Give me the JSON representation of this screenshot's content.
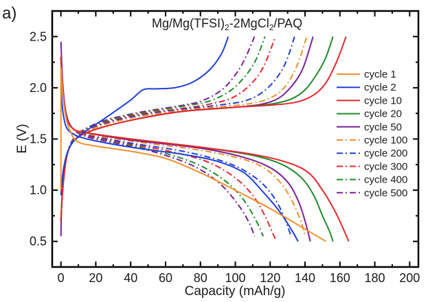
{
  "chart_data": {
    "type": "line",
    "panel_label": "a)",
    "title_parts": [
      {
        "text": "Mg/Mg(TFSI)",
        "sub": false
      },
      {
        "text": "2",
        "sub": true
      },
      {
        "text": "-2MgCl",
        "sub": false
      },
      {
        "text": "2",
        "sub": true
      },
      {
        "text": "/PAQ",
        "sub": false
      }
    ],
    "title": "Mg/Mg(TFSI)2-2MgCl2/PAQ",
    "xlabel": "Capacity (mAh/g)",
    "ylabel": "E (V)",
    "xlim": [
      -5,
      205
    ],
    "ylim": [
      0.25,
      2.75
    ],
    "xticks": [
      0,
      20,
      40,
      60,
      80,
      100,
      120,
      140,
      160,
      180,
      200
    ],
    "xminor": [
      10,
      30,
      50,
      70,
      90,
      110,
      130,
      150,
      170,
      190
    ],
    "yticks": [
      0.5,
      1.0,
      1.5,
      2.0,
      2.5
    ],
    "yticklabels": [
      "0.5",
      "1.0",
      "1.5",
      "2.0",
      "2.5"
    ],
    "yminor": [
      0.75,
      1.25,
      1.75,
      2.25
    ],
    "grid": false,
    "legend_position": "right",
    "series": [
      {
        "name": "cycle 1",
        "color": "#f28e2b",
        "dash": "solid",
        "charge": [
          [
            0,
            1.0
          ],
          [
            0,
            2.2
          ]
        ],
        "discharge": [
          [
            0,
            2.2
          ],
          [
            1,
            1.95
          ],
          [
            3,
            1.7
          ],
          [
            6,
            1.55
          ],
          [
            10,
            1.47
          ],
          [
            20,
            1.43
          ],
          [
            40,
            1.38
          ],
          [
            60,
            1.31
          ],
          [
            80,
            1.17
          ],
          [
            100,
            1.0
          ],
          [
            120,
            0.82
          ],
          [
            140,
            0.62
          ],
          [
            152,
            0.5
          ]
        ]
      },
      {
        "name": "cycle 2",
        "color": "#1f3fd6",
        "dash": "solid",
        "charge": [
          [
            0,
            0.95
          ],
          [
            1,
            1.15
          ],
          [
            3,
            1.33
          ],
          [
            6,
            1.45
          ],
          [
            12,
            1.55
          ],
          [
            25,
            1.7
          ],
          [
            40,
            1.88
          ],
          [
            47,
            1.98
          ],
          [
            55,
            1.99
          ],
          [
            65,
            2.0
          ],
          [
            75,
            2.05
          ],
          [
            85,
            2.17
          ],
          [
            92,
            2.33
          ],
          [
            96,
            2.5
          ]
        ],
        "discharge": [
          [
            0,
            2.0
          ],
          [
            1,
            1.78
          ],
          [
            3,
            1.62
          ],
          [
            7,
            1.55
          ],
          [
            15,
            1.5
          ],
          [
            40,
            1.42
          ],
          [
            70,
            1.35
          ],
          [
            90,
            1.28
          ],
          [
            105,
            1.17
          ],
          [
            115,
            1.0
          ],
          [
            125,
            0.8
          ],
          [
            132,
            0.62
          ],
          [
            136,
            0.5
          ]
        ]
      },
      {
        "name": "cycle 10",
        "color": "#e8262b",
        "dash": "solid",
        "charge": [
          [
            0,
            0.7
          ],
          [
            1,
            1.0
          ],
          [
            3,
            1.3
          ],
          [
            6,
            1.45
          ],
          [
            12,
            1.54
          ],
          [
            25,
            1.62
          ],
          [
            45,
            1.7
          ],
          [
            70,
            1.77
          ],
          [
            100,
            1.81
          ],
          [
            120,
            1.83
          ],
          [
            135,
            1.86
          ],
          [
            145,
            1.93
          ],
          [
            152,
            2.05
          ],
          [
            158,
            2.25
          ],
          [
            163.5,
            2.5
          ]
        ],
        "discharge": [
          [
            0,
            2.3
          ],
          [
            1,
            2.0
          ],
          [
            3,
            1.72
          ],
          [
            7,
            1.6
          ],
          [
            15,
            1.56
          ],
          [
            40,
            1.5
          ],
          [
            80,
            1.42
          ],
          [
            110,
            1.35
          ],
          [
            130,
            1.27
          ],
          [
            142,
            1.17
          ],
          [
            150,
            1.0
          ],
          [
            157,
            0.8
          ],
          [
            162,
            0.62
          ],
          [
            165,
            0.5
          ]
        ]
      },
      {
        "name": "cycle 20",
        "color": "#1f8a2a",
        "dash": "solid",
        "charge": [
          [
            0,
            0.7
          ],
          [
            1,
            1.0
          ],
          [
            3,
            1.3
          ],
          [
            6,
            1.45
          ],
          [
            12,
            1.54
          ],
          [
            25,
            1.62
          ],
          [
            45,
            1.7
          ],
          [
            70,
            1.77
          ],
          [
            100,
            1.81
          ],
          [
            120,
            1.84
          ],
          [
            132,
            1.89
          ],
          [
            140,
            1.98
          ],
          [
            147,
            2.14
          ],
          [
            152,
            2.3
          ],
          [
            156,
            2.5
          ]
        ],
        "discharge": [
          [
            0,
            2.3
          ],
          [
            1,
            2.0
          ],
          [
            3,
            1.72
          ],
          [
            7,
            1.6
          ],
          [
            15,
            1.56
          ],
          [
            40,
            1.5
          ],
          [
            80,
            1.42
          ],
          [
            110,
            1.34
          ],
          [
            127,
            1.25
          ],
          [
            138,
            1.12
          ],
          [
            145,
            0.95
          ],
          [
            150,
            0.75
          ],
          [
            154,
            0.6
          ],
          [
            156,
            0.5
          ]
        ]
      },
      {
        "name": "cycle 50",
        "color": "#7b1f9a",
        "dash": "solid",
        "charge": [
          [
            0,
            0.55
          ],
          [
            0.5,
            0.9
          ],
          [
            2,
            1.2
          ],
          [
            5,
            1.42
          ],
          [
            12,
            1.54
          ],
          [
            25,
            1.62
          ],
          [
            45,
            1.7
          ],
          [
            70,
            1.77
          ],
          [
            100,
            1.81
          ],
          [
            115,
            1.84
          ],
          [
            125,
            1.9
          ],
          [
            133,
            2.03
          ],
          [
            139,
            2.2
          ],
          [
            144.6,
            2.5
          ]
        ],
        "discharge": [
          [
            0,
            2.45
          ],
          [
            1,
            2.05
          ],
          [
            3,
            1.75
          ],
          [
            7,
            1.6
          ],
          [
            15,
            1.56
          ],
          [
            40,
            1.49
          ],
          [
            80,
            1.41
          ],
          [
            105,
            1.32
          ],
          [
            120,
            1.22
          ],
          [
            130,
            1.08
          ],
          [
            136,
            0.9
          ],
          [
            140,
            0.7
          ],
          [
            143,
            0.5
          ]
        ]
      },
      {
        "name": "cycle 100",
        "color": "#f28e2b",
        "dash": "dashdot",
        "charge": [
          [
            0,
            0.7
          ],
          [
            1,
            1.0
          ],
          [
            3,
            1.3
          ],
          [
            6,
            1.45
          ],
          [
            12,
            1.55
          ],
          [
            25,
            1.64
          ],
          [
            45,
            1.72
          ],
          [
            70,
            1.78
          ],
          [
            95,
            1.82
          ],
          [
            110,
            1.85
          ],
          [
            120,
            1.9
          ],
          [
            128,
            2.0
          ],
          [
            135,
            2.2
          ],
          [
            141,
            2.5
          ]
        ],
        "discharge": [
          [
            0,
            2.3
          ],
          [
            1,
            2.0
          ],
          [
            3,
            1.72
          ],
          [
            7,
            1.6
          ],
          [
            15,
            1.55
          ],
          [
            40,
            1.48
          ],
          [
            80,
            1.39
          ],
          [
            105,
            1.3
          ],
          [
            118,
            1.2
          ],
          [
            127,
            1.05
          ],
          [
            133,
            0.88
          ],
          [
            138,
            0.68
          ],
          [
            140,
            0.55
          ]
        ]
      },
      {
        "name": "cycle 200",
        "color": "#1f3fd6",
        "dash": "dashdot",
        "charge": [
          [
            0,
            0.7
          ],
          [
            1,
            1.0
          ],
          [
            3,
            1.3
          ],
          [
            6,
            1.45
          ],
          [
            12,
            1.55
          ],
          [
            25,
            1.65
          ],
          [
            45,
            1.73
          ],
          [
            70,
            1.79
          ],
          [
            90,
            1.83
          ],
          [
            105,
            1.87
          ],
          [
            115,
            1.95
          ],
          [
            123,
            2.08
          ],
          [
            129,
            2.25
          ],
          [
            134,
            2.5
          ]
        ],
        "discharge": [
          [
            0,
            2.3
          ],
          [
            1,
            2.0
          ],
          [
            3,
            1.72
          ],
          [
            7,
            1.6
          ],
          [
            15,
            1.54
          ],
          [
            40,
            1.46
          ],
          [
            70,
            1.38
          ],
          [
            95,
            1.27
          ],
          [
            110,
            1.14
          ],
          [
            120,
            0.98
          ],
          [
            127,
            0.78
          ],
          [
            132,
            0.55
          ]
        ]
      },
      {
        "name": "cycle 300",
        "color": "#e8262b",
        "dash": "dashdot",
        "charge": [
          [
            0,
            0.7
          ],
          [
            1,
            1.0
          ],
          [
            3,
            1.3
          ],
          [
            6,
            1.45
          ],
          [
            12,
            1.56
          ],
          [
            25,
            1.66
          ],
          [
            45,
            1.74
          ],
          [
            70,
            1.8
          ],
          [
            85,
            1.84
          ],
          [
            98,
            1.9
          ],
          [
            108,
            2.02
          ],
          [
            116,
            2.2
          ],
          [
            123,
            2.5
          ]
        ],
        "discharge": [
          [
            0,
            2.3
          ],
          [
            1,
            2.0
          ],
          [
            3,
            1.72
          ],
          [
            7,
            1.6
          ],
          [
            15,
            1.53
          ],
          [
            40,
            1.45
          ],
          [
            65,
            1.37
          ],
          [
            85,
            1.27
          ],
          [
            100,
            1.12
          ],
          [
            110,
            0.95
          ],
          [
            117,
            0.75
          ],
          [
            123,
            0.52
          ]
        ]
      },
      {
        "name": "cycle 400",
        "color": "#1f8a2a",
        "dash": "dashdot",
        "charge": [
          [
            0,
            0.7
          ],
          [
            1,
            1.0
          ],
          [
            3,
            1.3
          ],
          [
            6,
            1.46
          ],
          [
            12,
            1.57
          ],
          [
            25,
            1.67
          ],
          [
            45,
            1.75
          ],
          [
            70,
            1.82
          ],
          [
            85,
            1.87
          ],
          [
            97,
            1.97
          ],
          [
            106,
            2.12
          ],
          [
            112,
            2.28
          ],
          [
            117,
            2.5
          ]
        ],
        "discharge": [
          [
            0,
            2.3
          ],
          [
            1,
            2.0
          ],
          [
            3,
            1.72
          ],
          [
            7,
            1.6
          ],
          [
            15,
            1.53
          ],
          [
            40,
            1.44
          ],
          [
            62,
            1.35
          ],
          [
            80,
            1.24
          ],
          [
            95,
            1.08
          ],
          [
            105,
            0.9
          ],
          [
            112,
            0.7
          ],
          [
            116,
            0.55
          ]
        ]
      },
      {
        "name": "cycle 500",
        "color": "#7b1f9a",
        "dash": "dashdot",
        "charge": [
          [
            0,
            0.7
          ],
          [
            1,
            1.0
          ],
          [
            3,
            1.3
          ],
          [
            6,
            1.47
          ],
          [
            12,
            1.58
          ],
          [
            25,
            1.68
          ],
          [
            45,
            1.76
          ],
          [
            70,
            1.83
          ],
          [
            82,
            1.88
          ],
          [
            93,
            1.99
          ],
          [
            101,
            2.15
          ],
          [
            106,
            2.3
          ],
          [
            111,
            2.5
          ]
        ],
        "discharge": [
          [
            0,
            2.3
          ],
          [
            1,
            2.0
          ],
          [
            3,
            1.72
          ],
          [
            7,
            1.6
          ],
          [
            15,
            1.52
          ],
          [
            40,
            1.43
          ],
          [
            60,
            1.34
          ],
          [
            78,
            1.22
          ],
          [
            92,
            1.05
          ],
          [
            102,
            0.85
          ],
          [
            108,
            0.68
          ],
          [
            111,
            0.55
          ]
        ]
      }
    ]
  }
}
